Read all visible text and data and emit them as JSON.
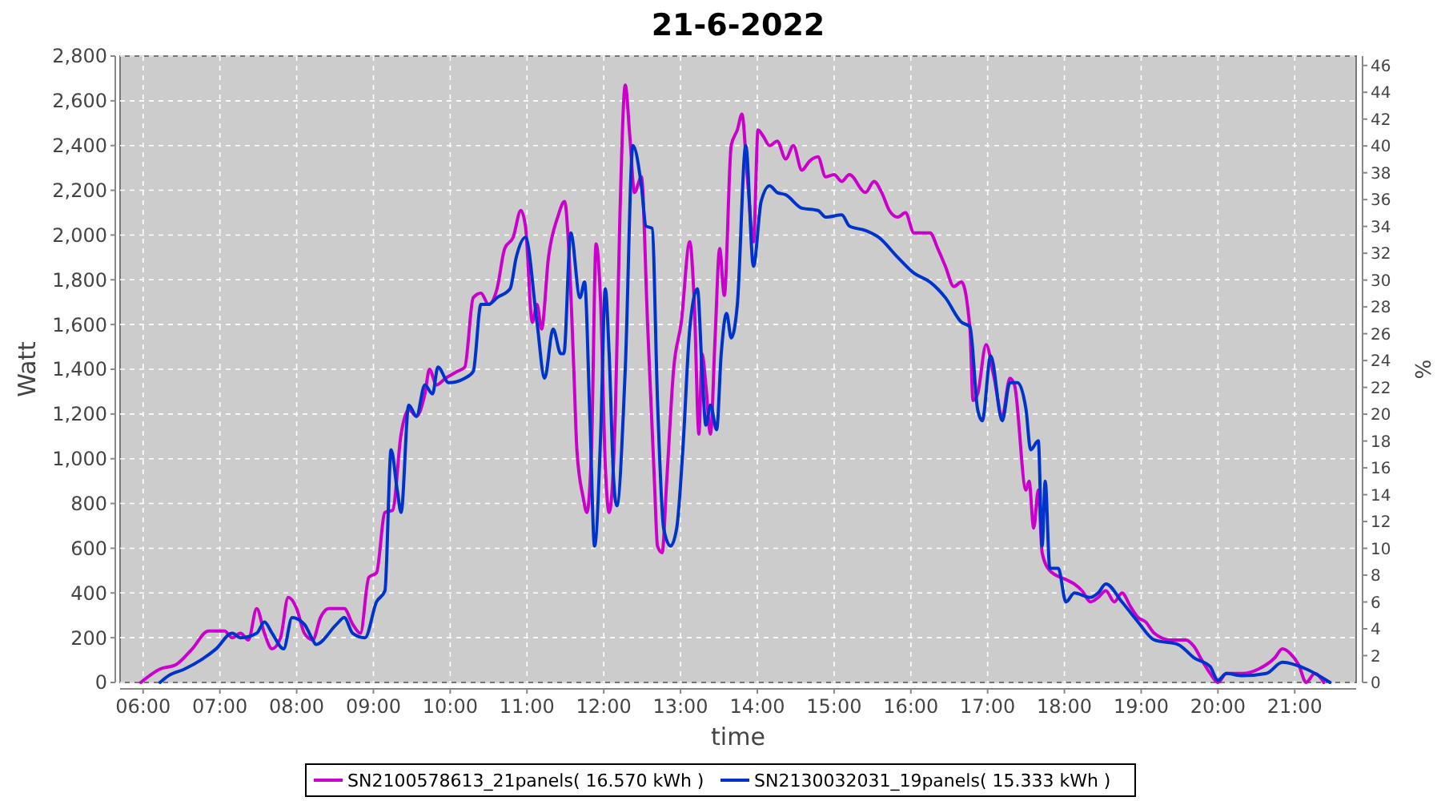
{
  "chart_data": {
    "type": "line",
    "title": "21-6-2022",
    "xlabel": "time",
    "ylabel": "Watt",
    "y2label": "%",
    "xlim": [
      5.7,
      21.8
    ],
    "ylim": [
      0,
      2800
    ],
    "y2lim": [
      0,
      46.7
    ],
    "xticks": [
      {
        "value": 6,
        "label": "06:00"
      },
      {
        "value": 7,
        "label": "07:00"
      },
      {
        "value": 8,
        "label": "08:00"
      },
      {
        "value": 9,
        "label": "09:00"
      },
      {
        "value": 10,
        "label": "10:00"
      },
      {
        "value": 11,
        "label": "11:00"
      },
      {
        "value": 12,
        "label": "12:00"
      },
      {
        "value": 13,
        "label": "13:00"
      },
      {
        "value": 14,
        "label": "14:00"
      },
      {
        "value": 15,
        "label": "15:00"
      },
      {
        "value": 16,
        "label": "16:00"
      },
      {
        "value": 17,
        "label": "17:00"
      },
      {
        "value": 18,
        "label": "18:00"
      },
      {
        "value": 19,
        "label": "19:00"
      },
      {
        "value": 20,
        "label": "20:00"
      },
      {
        "value": 21,
        "label": "21:00"
      }
    ],
    "yticks": [
      {
        "value": 0,
        "label": "0"
      },
      {
        "value": 200,
        "label": "200"
      },
      {
        "value": 400,
        "label": "400"
      },
      {
        "value": 600,
        "label": "600"
      },
      {
        "value": 800,
        "label": "800"
      },
      {
        "value": 1000,
        "label": "1,000"
      },
      {
        "value": 1200,
        "label": "1,200"
      },
      {
        "value": 1400,
        "label": "1,400"
      },
      {
        "value": 1600,
        "label": "1,600"
      },
      {
        "value": 1800,
        "label": "1,800"
      },
      {
        "value": 2000,
        "label": "2,000"
      },
      {
        "value": 2200,
        "label": "2,200"
      },
      {
        "value": 2400,
        "label": "2,400"
      },
      {
        "value": 2600,
        "label": "2,600"
      },
      {
        "value": 2800,
        "label": "2,800"
      }
    ],
    "y2ticks": [
      0,
      2,
      4,
      6,
      8,
      10,
      12,
      14,
      16,
      18,
      20,
      22,
      24,
      26,
      28,
      30,
      32,
      34,
      36,
      38,
      40,
      42,
      44,
      46
    ],
    "grid": true,
    "legend": "bottom",
    "line_style": "solid",
    "series": [
      {
        "name": "SN2100578613_21panels( 16.570 kWh )",
        "color": "#cc00cc",
        "x": [
          5.97,
          6.22,
          6.43,
          6.64,
          6.85,
          7.06,
          7.16,
          7.27,
          7.37,
          7.48,
          7.58,
          7.68,
          7.79,
          7.89,
          8.0,
          8.1,
          8.21,
          8.31,
          8.42,
          8.62,
          8.73,
          8.83,
          8.94,
          9.04,
          9.15,
          9.25,
          9.36,
          9.46,
          9.56,
          9.67,
          9.73,
          9.82,
          9.94,
          10.09,
          10.19,
          10.3,
          10.4,
          10.5,
          10.61,
          10.71,
          10.82,
          10.92,
          10.98,
          11.07,
          11.13,
          11.19,
          11.28,
          11.4,
          11.49,
          11.55,
          11.61,
          11.65,
          11.73,
          11.78,
          11.84,
          11.9,
          11.96,
          12.02,
          12.07,
          12.15,
          12.21,
          12.28,
          12.34,
          12.4,
          12.49,
          12.57,
          12.66,
          12.7,
          12.76,
          12.82,
          12.91,
          13.01,
          13.12,
          13.18,
          13.24,
          13.28,
          13.33,
          13.39,
          13.45,
          13.51,
          13.57,
          13.66,
          13.74,
          13.8,
          13.87,
          13.95,
          14.01,
          14.08,
          14.16,
          14.26,
          14.37,
          14.47,
          14.58,
          14.68,
          14.79,
          14.89,
          15.0,
          15.1,
          15.2,
          15.41,
          15.52,
          15.62,
          15.72,
          15.83,
          15.93,
          16.04,
          16.25,
          16.35,
          16.45,
          16.56,
          16.66,
          16.77,
          16.81,
          16.87,
          16.98,
          17.08,
          17.19,
          17.29,
          17.35,
          17.5,
          17.54,
          17.6,
          17.66,
          17.71,
          17.81,
          18.02,
          18.13,
          18.23,
          18.34,
          18.44,
          18.54,
          18.65,
          18.75,
          18.86,
          18.96,
          19.06,
          19.17,
          19.38,
          19.58,
          19.69,
          19.79,
          19.9,
          20.0,
          20.11,
          20.32,
          20.53,
          20.74,
          20.84,
          20.94,
          21.05,
          21.15,
          21.26,
          21.38
        ],
        "values": [
          0,
          60,
          80,
          150,
          230,
          230,
          200,
          220,
          190,
          330,
          220,
          150,
          200,
          380,
          330,
          220,
          190,
          290,
          330,
          330,
          260,
          220,
          470,
          490,
          760,
          770,
          1110,
          1220,
          1190,
          1290,
          1400,
          1330,
          1360,
          1390,
          1410,
          1720,
          1740,
          1690,
          1760,
          1940,
          1990,
          2110,
          2040,
          1610,
          1690,
          1580,
          1900,
          2080,
          2150,
          1900,
          1400,
          1040,
          830,
          760,
          1040,
          1960,
          1690,
          970,
          760,
          1190,
          2080,
          2670,
          2440,
          2190,
          2260,
          1610,
          900,
          610,
          580,
          900,
          1400,
          1610,
          1970,
          1690,
          1110,
          1470,
          1330,
          1110,
          1540,
          1940,
          1730,
          2400,
          2470,
          2540,
          2260,
          1970,
          2470,
          2440,
          2400,
          2420,
          2340,
          2400,
          2290,
          2330,
          2350,
          2260,
          2270,
          2240,
          2270,
          2190,
          2240,
          2190,
          2110,
          2080,
          2100,
          2010,
          2010,
          1940,
          1860,
          1770,
          1790,
          1580,
          1260,
          1290,
          1510,
          1370,
          1190,
          1360,
          1330,
          860,
          900,
          690,
          860,
          580,
          500,
          460,
          440,
          410,
          360,
          380,
          410,
          360,
          400,
          340,
          290,
          270,
          220,
          190,
          190,
          160,
          100,
          40,
          0,
          40,
          40,
          60,
          110,
          150,
          130,
          80,
          0,
          40,
          0
        ]
      },
      {
        "name": "SN2130032031_19panels( 15.333 kWh )",
        "color": "#0033cc",
        "x": [
          6.22,
          6.33,
          6.54,
          6.75,
          6.95,
          7.16,
          7.27,
          7.48,
          7.58,
          7.68,
          7.83,
          7.94,
          8.1,
          8.21,
          8.25,
          8.52,
          8.62,
          8.73,
          8.89,
          9.04,
          9.15,
          9.23,
          9.31,
          9.36,
          9.46,
          9.56,
          9.67,
          9.77,
          9.84,
          9.98,
          10.19,
          10.3,
          10.4,
          10.5,
          10.61,
          10.78,
          10.86,
          10.98,
          11.13,
          11.23,
          11.34,
          11.44,
          11.48,
          11.57,
          11.69,
          11.75,
          11.82,
          11.88,
          11.96,
          12.02,
          12.07,
          12.13,
          12.17,
          12.28,
          12.38,
          12.49,
          12.55,
          12.63,
          12.7,
          12.78,
          12.87,
          12.95,
          13.03,
          13.12,
          13.22,
          13.28,
          13.33,
          13.39,
          13.47,
          13.53,
          13.6,
          13.66,
          13.74,
          13.85,
          13.95,
          14.05,
          14.16,
          14.26,
          14.37,
          14.58,
          14.79,
          14.89,
          15.1,
          15.2,
          15.41,
          15.58,
          15.83,
          16.04,
          16.25,
          16.45,
          16.66,
          16.77,
          16.87,
          16.93,
          17.04,
          17.19,
          17.29,
          17.39,
          17.5,
          17.56,
          17.66,
          17.71,
          17.75,
          17.81,
          17.92,
          18.02,
          18.13,
          18.34,
          18.44,
          18.54,
          18.75,
          18.96,
          19.17,
          19.48,
          19.69,
          19.9,
          20.0,
          20.11,
          20.32,
          20.63,
          20.84,
          21.15,
          21.46
        ],
        "values": [
          0,
          30,
          60,
          100,
          150,
          220,
          200,
          220,
          270,
          220,
          150,
          290,
          260,
          190,
          170,
          260,
          290,
          220,
          200,
          360,
          410,
          1040,
          860,
          760,
          1240,
          1190,
          1330,
          1290,
          1410,
          1340,
          1360,
          1390,
          1690,
          1690,
          1720,
          1760,
          1900,
          1990,
          1610,
          1360,
          1580,
          1470,
          1470,
          2010,
          1720,
          1790,
          1180,
          610,
          1110,
          1760,
          1470,
          900,
          790,
          1400,
          2400,
          2220,
          2040,
          2030,
          1260,
          690,
          610,
          690,
          1040,
          1580,
          1760,
          1400,
          1150,
          1240,
          1130,
          1470,
          1650,
          1540,
          1690,
          2400,
          1860,
          2150,
          2220,
          2190,
          2180,
          2120,
          2110,
          2080,
          2090,
          2040,
          2020,
          1990,
          1900,
          1830,
          1790,
          1720,
          1610,
          1590,
          1220,
          1170,
          1460,
          1170,
          1340,
          1340,
          1220,
          1040,
          1080,
          610,
          900,
          510,
          510,
          360,
          400,
          380,
          400,
          440,
          360,
          270,
          190,
          170,
          110,
          70,
          10,
          40,
          30,
          40,
          90,
          60,
          0
        ]
      }
    ]
  }
}
